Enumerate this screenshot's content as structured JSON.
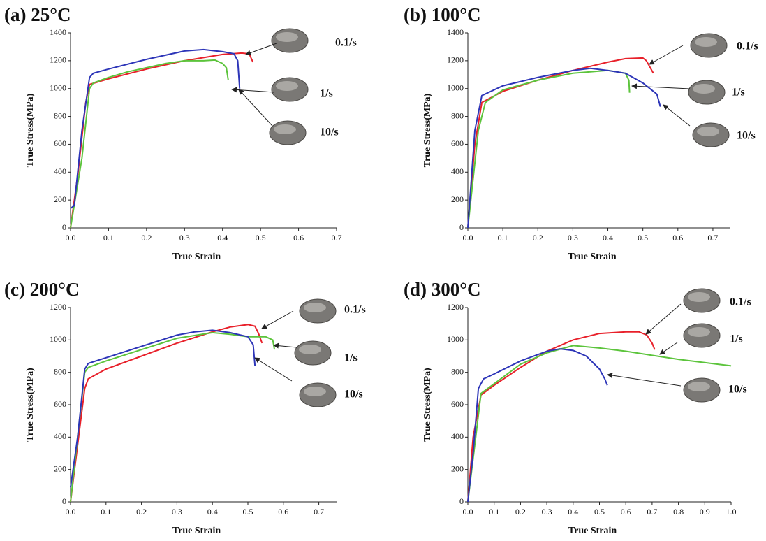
{
  "chart_data": [
    {
      "type": "line",
      "title": "(a) 25°C",
      "x_label": "True Strain",
      "y_label": "True Stress(MPa)",
      "xlim": [
        0,
        0.7
      ],
      "ylim": [
        0,
        1400
      ],
      "xticks": [
        {
          "value": 0,
          "label": "0.0"
        },
        0.1,
        0.2,
        0.3,
        0.4,
        0.5,
        0.6,
        0.7
      ],
      "yticks": [
        0,
        200,
        400,
        600,
        800,
        1000,
        1200,
        1400
      ],
      "series": [
        {
          "name": "0.1/s",
          "color": "#e8202a",
          "x": [
            0,
            0.02,
            0.04,
            0.05,
            0.1,
            0.2,
            0.3,
            0.4,
            0.45,
            0.47,
            0.48
          ],
          "values": [
            0,
            400,
            900,
            1030,
            1070,
            1140,
            1200,
            1245,
            1255,
            1250,
            1190
          ]
        },
        {
          "name": "1/s",
          "color": "#5cc43c",
          "x": [
            0,
            0.03,
            0.05,
            0.06,
            0.1,
            0.15,
            0.2,
            0.25,
            0.3,
            0.35,
            0.38,
            0.4,
            0.41,
            0.415
          ],
          "values": [
            0,
            500,
            1000,
            1040,
            1080,
            1120,
            1150,
            1180,
            1200,
            1200,
            1205,
            1180,
            1150,
            1060
          ]
        },
        {
          "name": "10/s",
          "color": "#2d35b8",
          "x": [
            0,
            0.01,
            0.03,
            0.05,
            0.06,
            0.1,
            0.2,
            0.3,
            0.35,
            0.4,
            0.43,
            0.44,
            0.445
          ],
          "values": [
            140,
            160,
            700,
            1080,
            1110,
            1140,
            1210,
            1270,
            1280,
            1265,
            1250,
            1200,
            1000
          ]
        }
      ]
    },
    {
      "type": "line",
      "title": "(b) 100°C",
      "x_label": "True Strain",
      "y_label": "True Stress(MPa)",
      "xlim": [
        0,
        0.75
      ],
      "ylim": [
        0,
        1400
      ],
      "xticks": [
        {
          "value": 0,
          "label": "0.0"
        },
        0.1,
        0.2,
        0.3,
        0.4,
        0.5,
        0.6,
        0.7
      ],
      "yticks": [
        0,
        200,
        400,
        600,
        800,
        1000,
        1200,
        1400
      ],
      "series": [
        {
          "name": "0.1/s",
          "color": "#e8202a",
          "x": [
            0,
            0.02,
            0.04,
            0.1,
            0.2,
            0.3,
            0.4,
            0.45,
            0.5,
            0.51,
            0.53
          ],
          "values": [
            0,
            600,
            900,
            980,
            1060,
            1130,
            1190,
            1215,
            1220,
            1200,
            1110
          ]
        },
        {
          "name": "1/s",
          "color": "#5cc43c",
          "x": [
            0,
            0.03,
            0.05,
            0.1,
            0.2,
            0.3,
            0.4,
            0.45,
            0.46,
            0.462
          ],
          "values": [
            0,
            700,
            900,
            990,
            1060,
            1110,
            1130,
            1110,
            1060,
            970
          ]
        },
        {
          "name": "10/s",
          "color": "#2d35b8",
          "x": [
            0,
            0.02,
            0.04,
            0.1,
            0.2,
            0.3,
            0.35,
            0.4,
            0.45,
            0.5,
            0.54,
            0.55
          ],
          "values": [
            0,
            700,
            950,
            1020,
            1080,
            1130,
            1145,
            1130,
            1110,
            1040,
            960,
            870
          ]
        }
      ]
    },
    {
      "type": "line",
      "title": "(c) 200°C",
      "x_label": "True Strain",
      "y_label": "True Stress(MPa)",
      "xlim": [
        0,
        0.75
      ],
      "ylim": [
        0,
        1200
      ],
      "xticks": [
        {
          "value": 0,
          "label": "0.0"
        },
        0.1,
        0.2,
        0.3,
        0.4,
        0.5,
        0.6,
        0.7
      ],
      "yticks": [
        0,
        200,
        400,
        600,
        800,
        1000,
        1200
      ],
      "series": [
        {
          "name": "0.1/s",
          "color": "#e8202a",
          "x": [
            0,
            0.02,
            0.04,
            0.05,
            0.1,
            0.2,
            0.3,
            0.4,
            0.45,
            0.5,
            0.52,
            0.53,
            0.54
          ],
          "values": [
            0,
            350,
            700,
            760,
            820,
            900,
            980,
            1050,
            1080,
            1095,
            1085,
            1040,
            980
          ]
        },
        {
          "name": "1/s",
          "color": "#5cc43c",
          "x": [
            0,
            0.03,
            0.04,
            0.05,
            0.1,
            0.2,
            0.3,
            0.4,
            0.45,
            0.5,
            0.55,
            0.57,
            0.575
          ],
          "values": [
            0,
            600,
            800,
            830,
            870,
            940,
            1010,
            1045,
            1035,
            1020,
            1020,
            1000,
            940
          ]
        },
        {
          "name": "10/s",
          "color": "#2d35b8",
          "x": [
            0,
            0.02,
            0.04,
            0.05,
            0.1,
            0.2,
            0.3,
            0.35,
            0.4,
            0.45,
            0.5,
            0.515,
            0.52
          ],
          "values": [
            90,
            400,
            820,
            855,
            890,
            960,
            1030,
            1050,
            1060,
            1045,
            1020,
            970,
            840
          ]
        }
      ]
    },
    {
      "type": "line",
      "title": "(d) 300°C",
      "x_label": "True Strain",
      "y_label": "True Stress(MPa)",
      "xlim": [
        0,
        1
      ],
      "ylim": [
        0,
        1200
      ],
      "xticks": [
        {
          "value": 0,
          "label": "0.0"
        },
        0.1,
        0.2,
        0.3,
        0.4,
        0.5,
        0.6,
        0.7,
        0.8,
        0.9,
        {
          "value": 1,
          "label": "1.0"
        }
      ],
      "yticks": [
        0,
        200,
        400,
        600,
        800,
        1000,
        1200
      ],
      "series": [
        {
          "name": "0.1/s",
          "color": "#e8202a",
          "x": [
            0,
            0.02,
            0.05,
            0.1,
            0.2,
            0.3,
            0.4,
            0.5,
            0.6,
            0.65,
            0.68,
            0.7,
            0.71
          ],
          "values": [
            0,
            400,
            660,
            720,
            830,
            930,
            1000,
            1040,
            1050,
            1050,
            1030,
            980,
            940
          ]
        },
        {
          "name": "1/s",
          "color": "#5cc43c",
          "x": [
            0,
            0.03,
            0.05,
            0.1,
            0.2,
            0.3,
            0.4,
            0.5,
            0.6,
            0.7,
            0.8,
            0.9,
            1
          ],
          "values": [
            0,
            400,
            670,
            730,
            850,
            920,
            965,
            950,
            930,
            905,
            880,
            860,
            840
          ]
        },
        {
          "name": "10/s",
          "color": "#2d35b8",
          "x": [
            0,
            0.02,
            0.04,
            0.06,
            0.1,
            0.2,
            0.3,
            0.35,
            0.4,
            0.45,
            0.5,
            0.52,
            0.53
          ],
          "values": [
            0,
            300,
            700,
            760,
            790,
            870,
            930,
            945,
            935,
            900,
            820,
            760,
            720
          ]
        }
      ]
    }
  ]
}
